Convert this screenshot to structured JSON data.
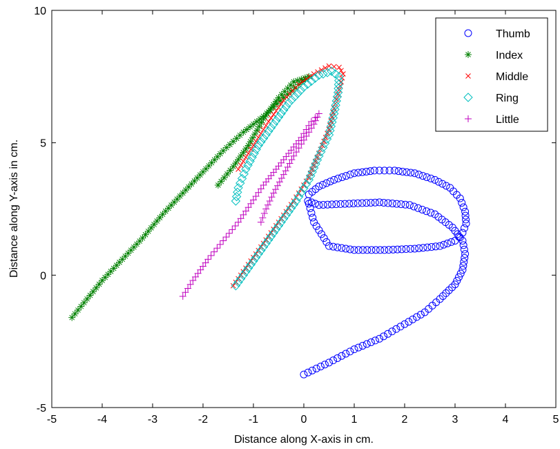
{
  "chart_data": {
    "type": "scatter",
    "xlabel": "Distance along X-axis in cm.",
    "ylabel": "Distance along Y-axis in cm.",
    "xlim": [
      -5,
      5
    ],
    "ylim": [
      -5,
      10
    ],
    "xticks": [
      "-5",
      "-4",
      "-3",
      "-2",
      "-1",
      "0",
      "1",
      "2",
      "3",
      "4",
      "5"
    ],
    "yticks": [
      "-5",
      "0",
      "5",
      "10"
    ],
    "grid": false,
    "legend_position": "top-right",
    "series": [
      {
        "name": "Thumb",
        "marker": "circle",
        "color": "#0000ff",
        "x": [
          0.0,
          0.5,
          1.0,
          1.5,
          2.0,
          2.4,
          2.7,
          3.0,
          3.15,
          3.2,
          3.15,
          2.95,
          2.6,
          2.1,
          1.5,
          0.9,
          0.3,
          0.08,
          0.1,
          0.3,
          0.6,
          1.0,
          1.4,
          1.8,
          2.2,
          2.6,
          2.9,
          3.1,
          3.2,
          3.22,
          3.15,
          3.0,
          2.7,
          2.2,
          1.6,
          1.0,
          0.5,
          0.2,
          0.1
        ],
        "y": [
          -3.75,
          -3.3,
          -2.8,
          -2.4,
          -1.85,
          -1.4,
          -0.9,
          -0.35,
          0.2,
          0.8,
          1.3,
          1.8,
          2.3,
          2.65,
          2.75,
          2.7,
          2.65,
          2.8,
          3.05,
          3.35,
          3.6,
          3.85,
          3.95,
          3.95,
          3.85,
          3.6,
          3.3,
          2.9,
          2.4,
          1.95,
          1.6,
          1.3,
          1.1,
          1.0,
          0.95,
          0.95,
          1.1,
          2.0,
          2.7
        ]
      },
      {
        "name": "Index",
        "marker": "asterisk",
        "color": "#008000",
        "x": [
          -4.6,
          -4.3,
          -4.0,
          -3.6,
          -3.2,
          -2.8,
          -2.4,
          -2.0,
          -1.6,
          -1.2,
          -0.8,
          -0.4,
          -0.1,
          0.1,
          -0.2,
          -0.5,
          -0.8,
          -1.1,
          -1.4,
          -1.7
        ],
        "y": [
          -1.6,
          -0.9,
          -0.2,
          0.6,
          1.4,
          2.3,
          3.1,
          3.9,
          4.7,
          5.4,
          6.0,
          6.7,
          7.2,
          7.5,
          7.3,
          6.7,
          5.9,
          4.9,
          4.1,
          3.4
        ]
      },
      {
        "name": "Middle",
        "marker": "x",
        "color": "#ff0000",
        "x": [
          -1.4,
          -1.1,
          -0.8,
          -0.5,
          -0.2,
          0.1,
          0.3,
          0.5,
          0.6,
          0.7,
          0.78,
          0.7,
          0.5,
          0.2,
          -0.1,
          -0.4,
          -0.7,
          -1.0,
          -1.3
        ],
        "y": [
          -0.4,
          0.4,
          1.2,
          2.0,
          2.8,
          3.7,
          4.6,
          5.5,
          6.3,
          7.0,
          7.6,
          7.85,
          7.9,
          7.6,
          7.2,
          6.6,
          5.8,
          4.9,
          4.0
        ]
      },
      {
        "name": "Ring",
        "marker": "diamond",
        "color": "#00bfbf",
        "x": [
          -1.35,
          -1.05,
          -0.75,
          -0.45,
          -0.15,
          0.1,
          0.3,
          0.5,
          0.6,
          0.68,
          0.7,
          0.55,
          0.3,
          0.0,
          -0.3,
          -0.6,
          -0.9,
          -1.15,
          -1.3,
          -1.35
        ],
        "y": [
          -0.4,
          0.4,
          1.2,
          2.0,
          2.8,
          3.6,
          4.5,
          5.3,
          6.1,
          6.9,
          7.5,
          7.7,
          7.55,
          7.1,
          6.5,
          5.7,
          4.9,
          4.0,
          3.3,
          2.8
        ]
      },
      {
        "name": "Little",
        "marker": "plus",
        "color": "#bf00bf",
        "x": [
          -2.4,
          -2.2,
          -1.9,
          -1.6,
          -1.3,
          -1.05,
          -0.8,
          -0.55,
          -0.3,
          -0.05,
          0.15,
          0.3,
          0.2,
          0.0,
          -0.2,
          -0.4,
          -0.6,
          -0.75,
          -0.85
        ],
        "y": [
          -0.8,
          -0.2,
          0.6,
          1.3,
          2.0,
          2.7,
          3.4,
          4.0,
          4.6,
          5.2,
          5.8,
          6.1,
          5.7,
          5.1,
          4.5,
          3.8,
          3.1,
          2.5,
          2.0
        ]
      }
    ]
  }
}
